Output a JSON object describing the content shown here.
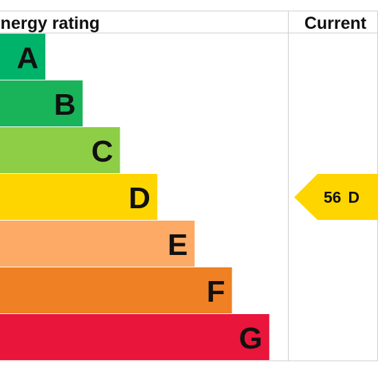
{
  "header": {
    "title": "Energy rating",
    "current": "Current"
  },
  "bands": [
    {
      "label": "A",
      "color": "#00b36b"
    },
    {
      "label": "B",
      "color": "#19b459"
    },
    {
      "label": "C",
      "color": "#8dce46"
    },
    {
      "label": "D",
      "color": "#ffd500"
    },
    {
      "label": "E",
      "color": "#fcaa65"
    },
    {
      "label": "F",
      "color": "#ef8023"
    },
    {
      "label": "G",
      "color": "#e9153b"
    }
  ],
  "current": {
    "score": 56,
    "band": "D",
    "color": "#ffd500"
  }
}
